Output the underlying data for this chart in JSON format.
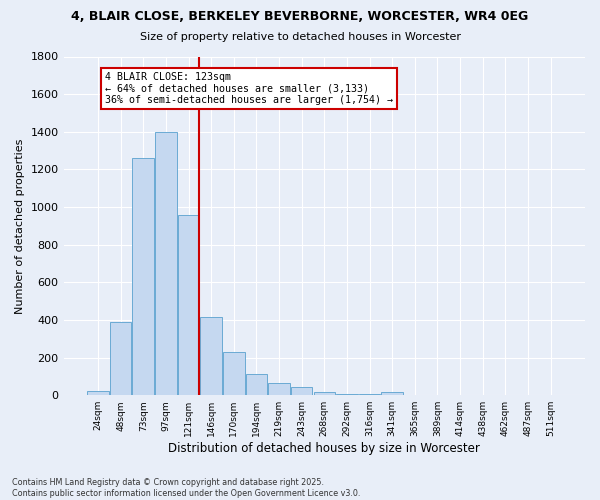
{
  "title1": "4, BLAIR CLOSE, BERKELEY BEVERBORNE, WORCESTER, WR4 0EG",
  "title2": "Size of property relative to detached houses in Worcester",
  "xlabel": "Distribution of detached houses by size in Worcester",
  "ylabel": "Number of detached properties",
  "categories": [
    "24sqm",
    "48sqm",
    "73sqm",
    "97sqm",
    "121sqm",
    "146sqm",
    "170sqm",
    "194sqm",
    "219sqm",
    "243sqm",
    "268sqm",
    "292sqm",
    "316sqm",
    "341sqm",
    "365sqm",
    "389sqm",
    "414sqm",
    "438sqm",
    "462sqm",
    "487sqm",
    "511sqm"
  ],
  "values": [
    25,
    390,
    1260,
    1400,
    960,
    415,
    230,
    115,
    65,
    45,
    15,
    5,
    5,
    15,
    3,
    3,
    0,
    0,
    0,
    0,
    0
  ],
  "bar_color": "#c5d8f0",
  "bar_edge_color": "#6aaad4",
  "vline_color": "#cc0000",
  "annotation_line1": "4 BLAIR CLOSE: 123sqm",
  "annotation_line2": "← 64% of detached houses are smaller (3,133)",
  "annotation_line3": "36% of semi-detached houses are larger (1,754) →",
  "annotation_box_facecolor": "#ffffff",
  "annotation_box_edgecolor": "#cc0000",
  "background_color": "#e8eef8",
  "grid_color": "#ffffff",
  "ylim": [
    0,
    1800
  ],
  "yticks": [
    0,
    200,
    400,
    600,
    800,
    1000,
    1200,
    1400,
    1600,
    1800
  ],
  "footer1": "Contains HM Land Registry data © Crown copyright and database right 2025.",
  "footer2": "Contains public sector information licensed under the Open Government Licence v3.0."
}
